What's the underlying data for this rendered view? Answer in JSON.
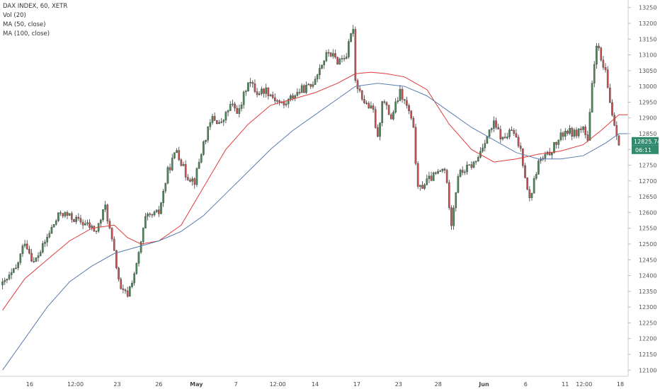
{
  "legend": {
    "symbol": "DAX INDEX, 60, XETR",
    "volume": "Vol (20)",
    "ma50": "MA (50, close)",
    "ma100": "MA (100, close)"
  },
  "price_tags": {
    "last": "12825.74",
    "countdown": "06:11"
  },
  "colors": {
    "up": "#4a8a57",
    "down": "#c95252",
    "ma50": "#e03a3a",
    "ma100": "#5a7bb0",
    "price_tag": "#2f8a6e"
  },
  "chart_data": {
    "type": "candlestick",
    "title": "DAX INDEX, 60, XETR",
    "yticks": [
      12100,
      12150,
      12200,
      12250,
      12300,
      12350,
      12400,
      12450,
      12500,
      12550,
      12600,
      12650,
      12700,
      12750,
      12800,
      12850,
      12900,
      12950,
      13000,
      13050,
      13100,
      13150,
      13200,
      13250
    ],
    "ylim": [
      12085,
      13265
    ],
    "xticks": [
      {
        "label": "16",
        "bold": false
      },
      {
        "label": "12:00",
        "bold": false
      },
      {
        "label": "23",
        "bold": false
      },
      {
        "label": "26",
        "bold": false
      },
      {
        "label": "May",
        "bold": true
      },
      {
        "label": "7",
        "bold": false
      },
      {
        "label": "12:00",
        "bold": false
      },
      {
        "label": "14",
        "bold": false
      },
      {
        "label": "17",
        "bold": false
      },
      {
        "label": "23",
        "bold": false
      },
      {
        "label": "28",
        "bold": false
      },
      {
        "label": "Jun",
        "bold": true
      },
      {
        "label": "6",
        "bold": false
      },
      {
        "label": "11",
        "bold": false
      },
      {
        "label": "12:00",
        "bold": false
      },
      {
        "label": "18",
        "bold": false
      }
    ],
    "price_path": [
      {
        "i": 0,
        "v": 12370
      },
      {
        "i": 6,
        "v": 12420
      },
      {
        "i": 10,
        "v": 12510
      },
      {
        "i": 14,
        "v": 12440
      },
      {
        "i": 18,
        "v": 12490
      },
      {
        "i": 22,
        "v": 12550
      },
      {
        "i": 26,
        "v": 12600
      },
      {
        "i": 32,
        "v": 12580
      },
      {
        "i": 38,
        "v": 12560
      },
      {
        "i": 42,
        "v": 12540
      },
      {
        "i": 46,
        "v": 12620
      },
      {
        "i": 50,
        "v": 12470
      },
      {
        "i": 53,
        "v": 12350
      },
      {
        "i": 56,
        "v": 12340
      },
      {
        "i": 60,
        "v": 12430
      },
      {
        "i": 64,
        "v": 12580
      },
      {
        "i": 70,
        "v": 12600
      },
      {
        "i": 74,
        "v": 12730
      },
      {
        "i": 78,
        "v": 12800
      },
      {
        "i": 82,
        "v": 12720
      },
      {
        "i": 86,
        "v": 12700
      },
      {
        "i": 90,
        "v": 12820
      },
      {
        "i": 94,
        "v": 12900
      },
      {
        "i": 98,
        "v": 12880
      },
      {
        "i": 102,
        "v": 12940
      },
      {
        "i": 106,
        "v": 12920
      },
      {
        "i": 110,
        "v": 13020
      },
      {
        "i": 114,
        "v": 12980
      },
      {
        "i": 118,
        "v": 12990
      },
      {
        "i": 122,
        "v": 12960
      },
      {
        "i": 126,
        "v": 12940
      },
      {
        "i": 130,
        "v": 12970
      },
      {
        "i": 134,
        "v": 12990
      },
      {
        "i": 138,
        "v": 13000
      },
      {
        "i": 142,
        "v": 13060
      },
      {
        "i": 146,
        "v": 13110
      },
      {
        "i": 150,
        "v": 13080
      },
      {
        "i": 154,
        "v": 13100
      },
      {
        "i": 157,
        "v": 13190
      },
      {
        "i": 158,
        "v": 13020
      },
      {
        "i": 162,
        "v": 12950
      },
      {
        "i": 166,
        "v": 12920
      },
      {
        "i": 168,
        "v": 12830
      },
      {
        "i": 170,
        "v": 12960
      },
      {
        "i": 174,
        "v": 12900
      },
      {
        "i": 178,
        "v": 12980
      },
      {
        "i": 182,
        "v": 12920
      },
      {
        "i": 184,
        "v": 12860
      },
      {
        "i": 186,
        "v": 12670
      },
      {
        "i": 190,
        "v": 12700
      },
      {
        "i": 194,
        "v": 12720
      },
      {
        "i": 198,
        "v": 12740
      },
      {
        "i": 201,
        "v": 12570
      },
      {
        "i": 204,
        "v": 12720
      },
      {
        "i": 208,
        "v": 12740
      },
      {
        "i": 212,
        "v": 12760
      },
      {
        "i": 216,
        "v": 12830
      },
      {
        "i": 220,
        "v": 12880
      },
      {
        "i": 224,
        "v": 12830
      },
      {
        "i": 228,
        "v": 12860
      },
      {
        "i": 232,
        "v": 12800
      },
      {
        "i": 236,
        "v": 12640
      },
      {
        "i": 240,
        "v": 12760
      },
      {
        "i": 244,
        "v": 12780
      },
      {
        "i": 248,
        "v": 12820
      },
      {
        "i": 252,
        "v": 12860
      },
      {
        "i": 256,
        "v": 12850
      },
      {
        "i": 260,
        "v": 12870
      },
      {
        "i": 262,
        "v": 12820
      },
      {
        "i": 264,
        "v": 13000
      },
      {
        "i": 266,
        "v": 13140
      },
      {
        "i": 268,
        "v": 13080
      },
      {
        "i": 270,
        "v": 13040
      },
      {
        "i": 272,
        "v": 12950
      },
      {
        "i": 274,
        "v": 12880
      },
      {
        "i": 276,
        "v": 12826
      }
    ],
    "series": [
      {
        "name": "MA (50, close)",
        "points": [
          {
            "i": 0,
            "v": 12290
          },
          {
            "i": 10,
            "v": 12390
          },
          {
            "i": 20,
            "v": 12450
          },
          {
            "i": 30,
            "v": 12510
          },
          {
            "i": 40,
            "v": 12550
          },
          {
            "i": 50,
            "v": 12560
          },
          {
            "i": 56,
            "v": 12520
          },
          {
            "i": 62,
            "v": 12500
          },
          {
            "i": 70,
            "v": 12510
          },
          {
            "i": 80,
            "v": 12560
          },
          {
            "i": 90,
            "v": 12680
          },
          {
            "i": 100,
            "v": 12800
          },
          {
            "i": 110,
            "v": 12880
          },
          {
            "i": 120,
            "v": 12940
          },
          {
            "i": 130,
            "v": 12960
          },
          {
            "i": 140,
            "v": 12980
          },
          {
            "i": 150,
            "v": 13010
          },
          {
            "i": 158,
            "v": 13040
          },
          {
            "i": 165,
            "v": 13045
          },
          {
            "i": 172,
            "v": 13040
          },
          {
            "i": 180,
            "v": 13030
          },
          {
            "i": 190,
            "v": 12990
          },
          {
            "i": 200,
            "v": 12880
          },
          {
            "i": 210,
            "v": 12800
          },
          {
            "i": 220,
            "v": 12760
          },
          {
            "i": 230,
            "v": 12770
          },
          {
            "i": 240,
            "v": 12785
          },
          {
            "i": 250,
            "v": 12795
          },
          {
            "i": 260,
            "v": 12815
          },
          {
            "i": 268,
            "v": 12860
          },
          {
            "i": 276,
            "v": 12910
          },
          {
            "i": 280,
            "v": 12910
          }
        ]
      },
      {
        "name": "MA (100, close)",
        "points": [
          {
            "i": 0,
            "v": 12100
          },
          {
            "i": 10,
            "v": 12200
          },
          {
            "i": 20,
            "v": 12300
          },
          {
            "i": 30,
            "v": 12380
          },
          {
            "i": 40,
            "v": 12430
          },
          {
            "i": 50,
            "v": 12470
          },
          {
            "i": 60,
            "v": 12490
          },
          {
            "i": 70,
            "v": 12510
          },
          {
            "i": 80,
            "v": 12540
          },
          {
            "i": 90,
            "v": 12590
          },
          {
            "i": 100,
            "v": 12660
          },
          {
            "i": 110,
            "v": 12730
          },
          {
            "i": 120,
            "v": 12800
          },
          {
            "i": 130,
            "v": 12860
          },
          {
            "i": 140,
            "v": 12910
          },
          {
            "i": 150,
            "v": 12960
          },
          {
            "i": 158,
            "v": 13000
          },
          {
            "i": 168,
            "v": 13010
          },
          {
            "i": 180,
            "v": 13000
          },
          {
            "i": 190,
            "v": 12970
          },
          {
            "i": 200,
            "v": 12920
          },
          {
            "i": 210,
            "v": 12870
          },
          {
            "i": 220,
            "v": 12830
          },
          {
            "i": 230,
            "v": 12790
          },
          {
            "i": 240,
            "v": 12770
          },
          {
            "i": 250,
            "v": 12770
          },
          {
            "i": 260,
            "v": 12780
          },
          {
            "i": 270,
            "v": 12820
          },
          {
            "i": 276,
            "v": 12850
          },
          {
            "i": 280,
            "v": 12850
          }
        ]
      }
    ],
    "last_price": 12825.74,
    "grid": false
  }
}
